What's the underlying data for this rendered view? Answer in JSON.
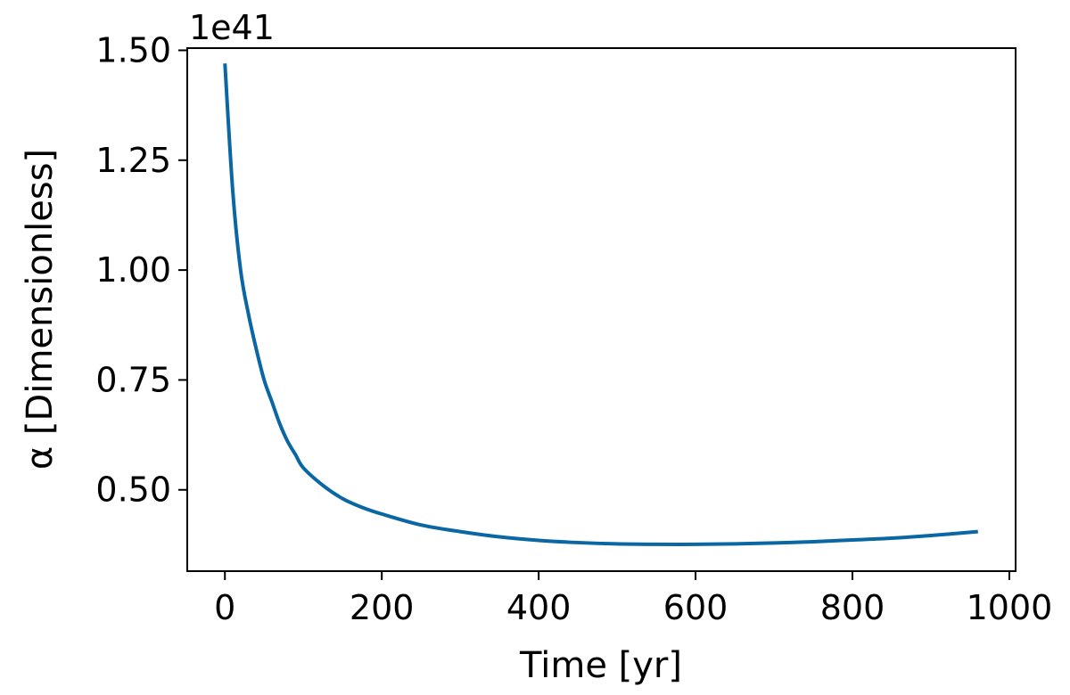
{
  "chart_data": {
    "type": "line",
    "title": "",
    "xlabel": "Time [yr]",
    "ylabel": "α [Dimensionless]",
    "y_offset_text": "1e41",
    "xlim": [
      -48,
      1008
    ],
    "ylim": [
      0.315,
      1.505
    ],
    "x_ticks": [
      0,
      200,
      400,
      600,
      800,
      1000
    ],
    "x_tick_labels": [
      "0",
      "200",
      "400",
      "600",
      "800",
      "1000"
    ],
    "y_ticks": [
      0.5,
      0.75,
      1.0,
      1.25,
      1.5
    ],
    "y_tick_labels": [
      "0.50",
      "0.75",
      "1.00",
      "1.25",
      "1.50"
    ],
    "grid": false,
    "legend": "none",
    "series": [
      {
        "color": "#0a67a3",
        "x": [
          0,
          10,
          20,
          30,
          40,
          50,
          60,
          70,
          80,
          90,
          100,
          125,
          150,
          175,
          200,
          250,
          300,
          350,
          400,
          450,
          500,
          550,
          600,
          650,
          700,
          750,
          800,
          850,
          900,
          960
        ],
        "y": [
          1.47,
          1.18,
          1.0,
          0.9,
          0.82,
          0.75,
          0.7,
          0.65,
          0.61,
          0.58,
          0.55,
          0.51,
          0.48,
          0.46,
          0.445,
          0.42,
          0.405,
          0.393,
          0.385,
          0.38,
          0.377,
          0.376,
          0.376,
          0.377,
          0.379,
          0.382,
          0.386,
          0.39,
          0.396,
          0.405
        ]
      }
    ]
  }
}
